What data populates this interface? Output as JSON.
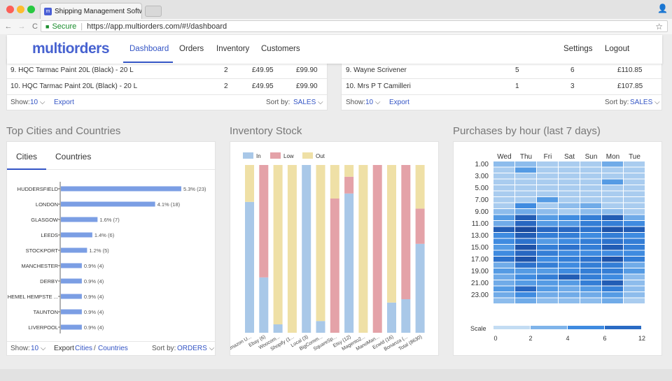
{
  "browser": {
    "tab_title": "Shipping Management Softwa",
    "tab_close": "×",
    "secure_label": "Secure",
    "url": "https://app.multiorders.com/#!/dashboard",
    "back": "←",
    "forward": "→",
    "reload": "C",
    "star": "☆",
    "profile": "👤"
  },
  "app": {
    "logo": "multiorders",
    "nav": [
      "Dashboard",
      "Orders",
      "Inventory",
      "Customers"
    ],
    "nav_right": [
      "Settings",
      "Logout"
    ]
  },
  "top_products_table": {
    "rows": [
      {
        "name": "9. HQC Tarmac Paint 20L (Black) - 20 L",
        "qty": "2",
        "price": "£49.95",
        "total": "£99.90"
      },
      {
        "name": "10. HQC Tarmac Paint 20L (Black) - 20 L",
        "qty": "2",
        "price": "£49.95",
        "total": "£99.90"
      }
    ],
    "footer": {
      "show_label": "Show:",
      "show_value": "10",
      "export": "Export",
      "sort_label": "Sort by:",
      "sort_value": "SALES"
    }
  },
  "top_customers_table": {
    "rows": [
      {
        "name": "9. Wayne Scrivener",
        "orders": "5",
        "items": "6",
        "total": "£110.85"
      },
      {
        "name": "10. Mrs P T Camilleri",
        "orders": "1",
        "items": "3",
        "total": "£107.85"
      }
    ],
    "footer": {
      "show_label": "Show:",
      "show_value": "10",
      "export": "Export",
      "sort_label": "Sort by:",
      "sort_value": "SALES"
    }
  },
  "cities_section": {
    "title": "Top Cities and Countries",
    "tabs": [
      "Cities",
      "Countries"
    ],
    "footer": {
      "show_label": "Show:",
      "show_value": "10",
      "export_label": "Export",
      "export_cities": "Cities",
      "export_sep": "/",
      "export_countries": "Countries",
      "sort_label": "Sort by:",
      "sort_value": "ORDERS"
    }
  },
  "inventory_section": {
    "title": "Inventory Stock"
  },
  "purchases_section": {
    "title": "Purchases by hour (last 7 days)"
  },
  "chart_data": [
    {
      "type": "bar",
      "orientation": "horizontal",
      "categories": [
        "HUDDERSFIELD",
        "LONDON",
        "GLASGOW",
        "LEEDS",
        "STOCKPORT",
        "MANCHESTER",
        "DERBY",
        "HEMEL HEMPSTE ...",
        "TAUNTON",
        "LIVERPOOL"
      ],
      "values": [
        23,
        18,
        7,
        6,
        5,
        4,
        4,
        4,
        4,
        4
      ],
      "data_labels": [
        "5.3% (23)",
        "4.1% (18)",
        "1.6% (7)",
        "1.4% (6)",
        "1.2% (5)",
        "0.9% (4)",
        "0.9% (4)",
        "0.9% (4)",
        "0.9% (4)",
        "0.9% (4)"
      ],
      "color": "#7b9ee4",
      "xlim": [
        0,
        23
      ]
    },
    {
      "type": "bar",
      "stacked": true,
      "percent": true,
      "legend": "top-left",
      "categories": [
        "Amazon U...",
        "Ebay (6)",
        "Woocom...",
        "Shopify (1...",
        "Local (3)",
        "BigComm...",
        "SquareSp...",
        "Etsy (12)",
        "Magento2...",
        "ManoMan...",
        "Ecwid (16)",
        "Bonanza (...",
        "Total (8630)"
      ],
      "series": [
        {
          "name": "In",
          "color": "#a9c8e8",
          "values": [
            78,
            33,
            5,
            0,
            100,
            7,
            0,
            83,
            0,
            0,
            18,
            20,
            53
          ]
        },
        {
          "name": "Low",
          "color": "#e4a2a8",
          "values": [
            0,
            67,
            0,
            0,
            0,
            0,
            80,
            10,
            0,
            100,
            0,
            80,
            21
          ]
        },
        {
          "name": "Out",
          "color": "#efe0a6",
          "values": [
            22,
            0,
            95,
            100,
            0,
            93,
            20,
            7,
            100,
            0,
            82,
            0,
            26
          ]
        }
      ],
      "ylim": [
        0,
        100
      ]
    },
    {
      "type": "heatmap",
      "x": [
        "Wed",
        "Thu",
        "Fri",
        "Sat",
        "Sun",
        "Mon",
        "Tue"
      ],
      "y_labels": [
        "1.00",
        "3.00",
        "5.00",
        "7.00",
        "9.00",
        "11.00",
        "13.00",
        "15.00",
        "17.00",
        "19.00",
        "21.00",
        "23.00"
      ],
      "y_hours": 24,
      "values": [
        [
          2,
          2,
          1,
          1,
          1,
          3,
          1
        ],
        [
          1,
          4,
          1,
          1,
          1,
          1,
          1
        ],
        [
          1,
          1,
          1,
          1,
          1,
          1,
          1
        ],
        [
          1,
          1,
          1,
          1,
          1,
          4,
          1
        ],
        [
          1,
          1,
          1,
          1,
          1,
          1,
          1
        ],
        [
          1,
          1,
          1,
          1,
          1,
          1,
          1
        ],
        [
          1,
          1,
          4,
          1,
          1,
          1,
          1
        ],
        [
          1,
          5,
          1,
          2,
          3,
          1,
          1
        ],
        [
          2,
          3,
          2,
          1,
          2,
          2,
          1
        ],
        [
          4,
          9,
          4,
          5,
          6,
          9,
          3
        ],
        [
          3,
          8,
          4,
          4,
          6,
          6,
          5
        ],
        [
          9,
          11,
          8,
          8,
          7,
          10,
          9
        ],
        [
          5,
          9,
          6,
          6,
          5,
          6,
          5
        ],
        [
          5,
          7,
          4,
          5,
          6,
          7,
          6
        ],
        [
          4,
          10,
          6,
          7,
          6,
          9,
          6
        ],
        [
          5,
          8,
          6,
          5,
          5,
          5,
          5
        ],
        [
          7,
          10,
          5,
          6,
          7,
          10,
          6
        ],
        [
          3,
          7,
          6,
          5,
          6,
          6,
          3
        ],
        [
          4,
          4,
          4,
          5,
          6,
          6,
          4
        ],
        [
          3,
          5,
          6,
          9,
          6,
          5,
          2
        ],
        [
          3,
          4,
          4,
          4,
          6,
          9,
          2
        ],
        [
          4,
          8,
          4,
          3,
          4,
          6,
          2
        ],
        [
          3,
          5,
          3,
          3,
          3,
          4,
          2
        ],
        [
          2,
          3,
          2,
          2,
          2,
          3,
          1
        ]
      ],
      "scale": {
        "label": "Scale",
        "ticks": [
          0,
          2,
          4,
          6,
          12
        ],
        "colors": [
          "#c3dcf3",
          "#7fb4ea",
          "#3f8be0",
          "#2a6bc4"
        ]
      }
    }
  ]
}
